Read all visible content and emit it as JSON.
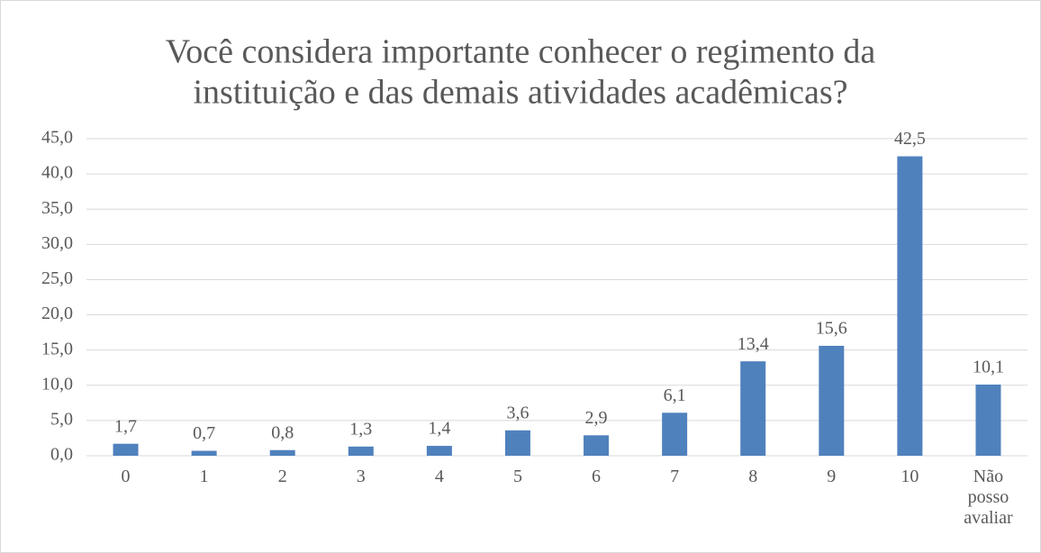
{
  "chart_data": {
    "type": "bar",
    "title": [
      "Você considera importante conhecer o regimento da",
      "instituição e das demais atividades acadêmicas?"
    ],
    "categories": [
      "0",
      "1",
      "2",
      "3",
      "4",
      "5",
      "6",
      "7",
      "8",
      "9",
      "10",
      "Não posso avaliar"
    ],
    "values": [
      1.7,
      0.7,
      0.8,
      1.3,
      1.4,
      3.6,
      2.9,
      6.1,
      13.4,
      15.6,
      42.5,
      10.1
    ],
    "value_labels": [
      "1,7",
      "0,7",
      "0,8",
      "1,3",
      "1,4",
      "3,6",
      "2,9",
      "6,1",
      "13,4",
      "15,6",
      "42,5",
      "10,1"
    ],
    "color": "#4f81bd",
    "ylim": [
      0,
      45
    ],
    "yticks": [
      {
        "value": 0,
        "label": "0,0"
      },
      {
        "value": 5,
        "label": "5,0"
      },
      {
        "value": 10,
        "label": "10,0"
      },
      {
        "value": 15,
        "label": "15,0"
      },
      {
        "value": 20,
        "label": "20,0"
      },
      {
        "value": 25,
        "label": "25,0"
      },
      {
        "value": 30,
        "label": "30,0"
      },
      {
        "value": 35,
        "label": "35,0"
      },
      {
        "value": 40,
        "label": "40,0"
      },
      {
        "value": 45,
        "label": "45,0"
      }
    ],
    "grid": true
  }
}
